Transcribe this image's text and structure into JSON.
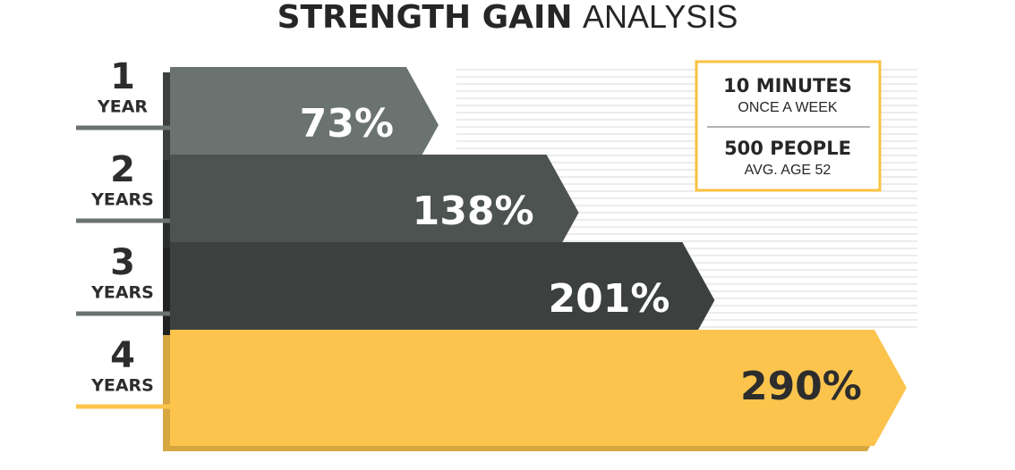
{
  "chart_data": {
    "type": "arrow-bar",
    "title": {
      "bold": "STRENGTH GAIN",
      "light": "ANALYSIS"
    },
    "categories": [
      "1",
      "2",
      "3",
      "4"
    ],
    "category_units": [
      "YEAR",
      "YEARS",
      "YEARS",
      "YEARS"
    ],
    "values": [
      73,
      138,
      201,
      290
    ],
    "value_labels": [
      "73%",
      "138%",
      "201%",
      "290%"
    ],
    "colors": [
      "#6b7370",
      "#4d5351",
      "#3c403f",
      "#fcc44d"
    ],
    "notes": [
      {
        "heading": "10 MINUTES",
        "text": "ONCE A WEEK"
      },
      {
        "heading": "500 PEOPLE",
        "text": "AVG. AGE 52"
      }
    ]
  }
}
